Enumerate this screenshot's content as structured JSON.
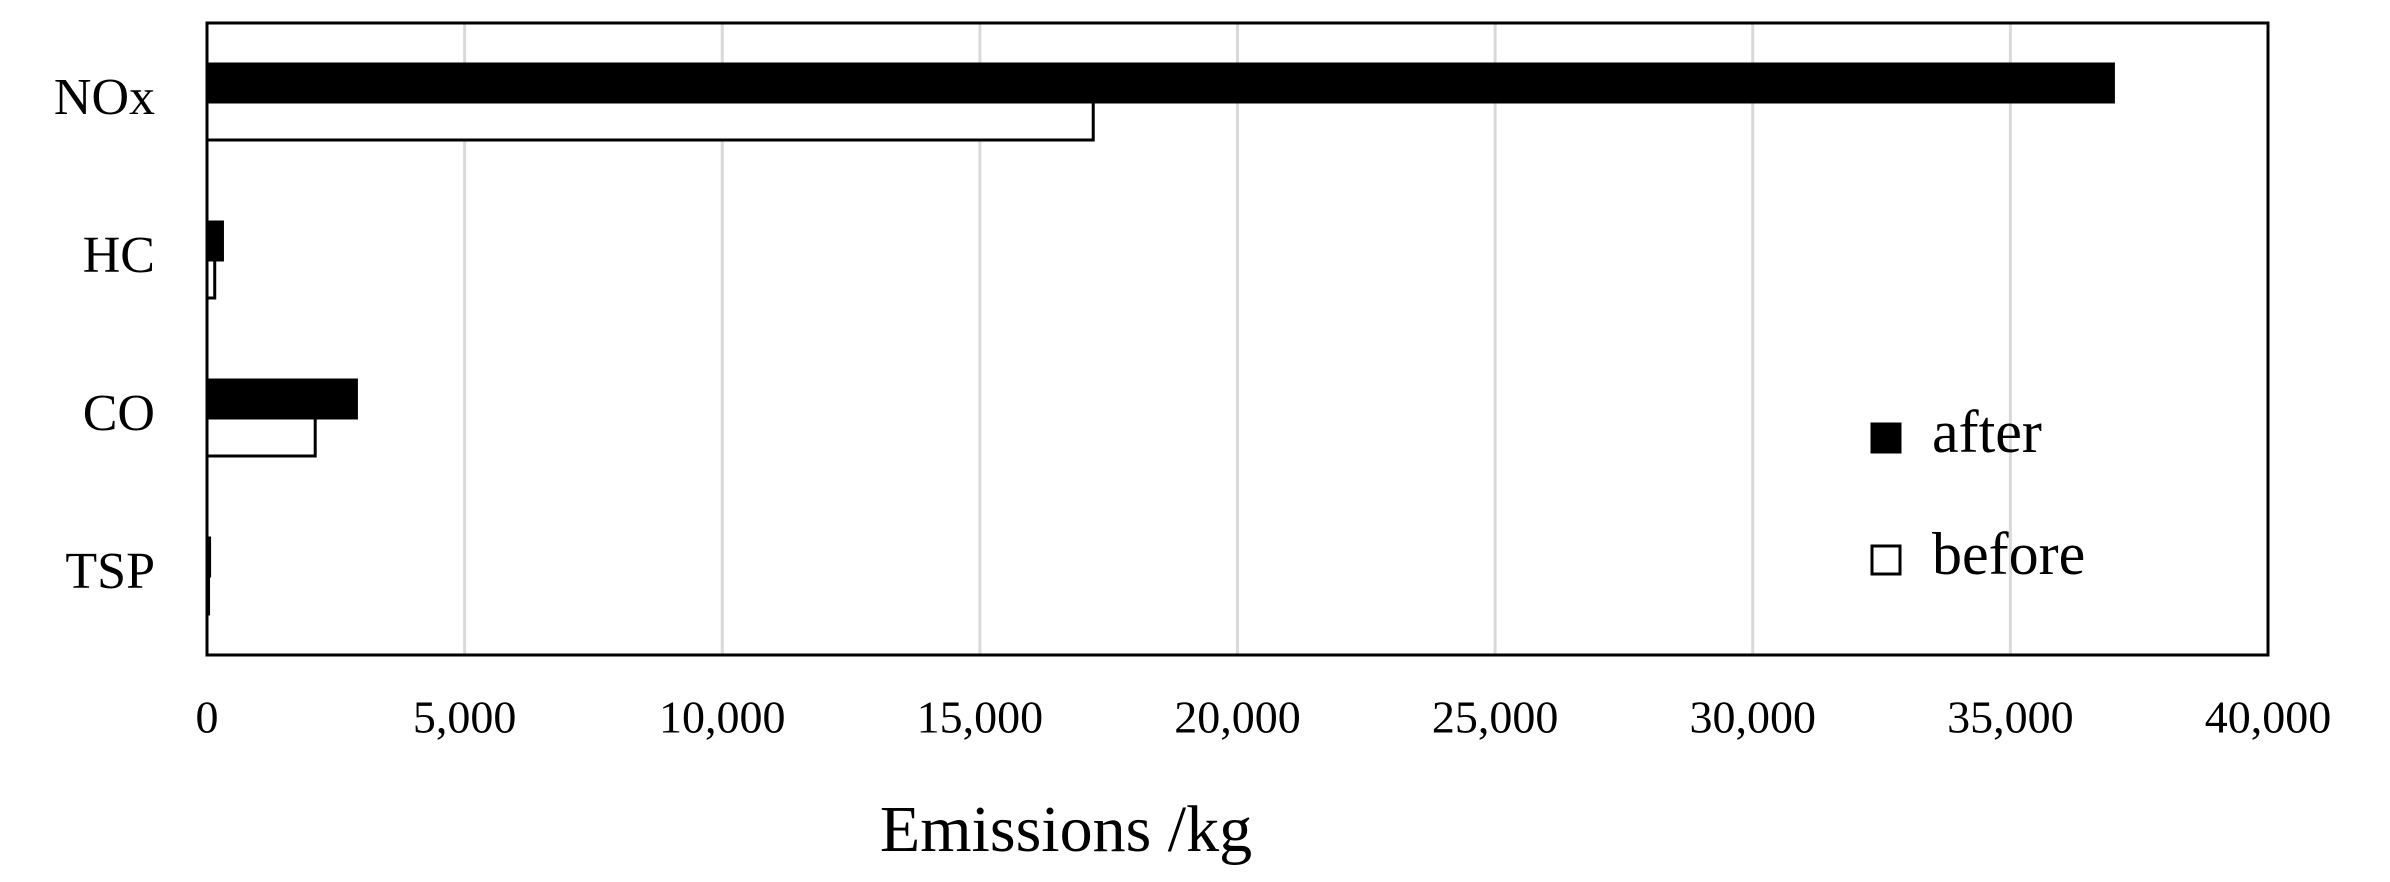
{
  "chart_data": {
    "type": "hbar",
    "categories": [
      "NOx",
      "HC",
      "CO",
      "TSP"
    ],
    "series": [
      {
        "name": "after",
        "color": "#000000",
        "values": [
          37000,
          300,
          2900,
          50
        ]
      },
      {
        "name": "before",
        "color": "#ffffff",
        "values": [
          17200,
          150,
          2100,
          30
        ]
      }
    ],
    "xlabel": "Emissions /kg",
    "xlim": [
      0,
      40000
    ],
    "xticks": [
      0,
      {
        "value": 5000,
        "label": "5,000"
      },
      {
        "value": 10000,
        "label": "10,000"
      },
      {
        "value": 15000,
        "label": "15,000"
      },
      {
        "value": 20000,
        "label": "20,000"
      },
      {
        "value": 25000,
        "label": "25,000"
      },
      {
        "value": 30000,
        "label": "30,000"
      },
      {
        "value": 35000,
        "label": "35,000"
      },
      {
        "value": 40000,
        "label": "40,000"
      }
    ],
    "grid": true,
    "legend": "lower right"
  }
}
